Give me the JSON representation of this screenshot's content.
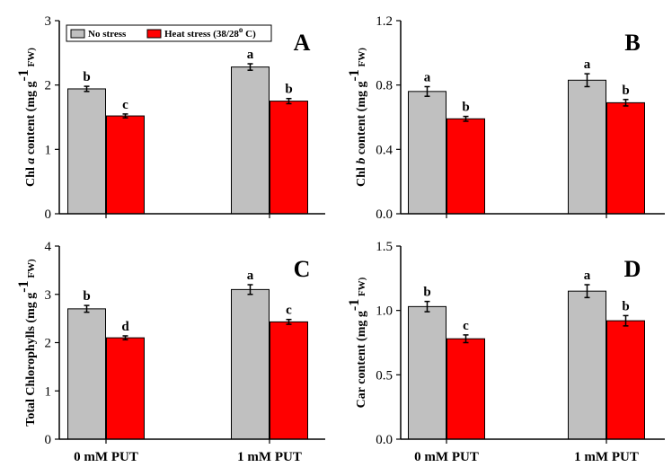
{
  "legend": {
    "no_stress": "No stress",
    "heat_stress": "Heat stress (38/28",
    "heat_stress_sup": "o",
    "heat_stress_end": " C)"
  },
  "colors": {
    "no_stress": "#c0c0c0",
    "heat_stress": "#ff0000",
    "axis": "#000000"
  },
  "chart_data": [
    {
      "type": "bar",
      "panel_label": "A",
      "categories": [
        "0  mM PUT",
        "1 mM PUT"
      ],
      "series": [
        {
          "name": "No stress",
          "values": [
            1.94,
            2.28
          ],
          "errors": [
            0.04,
            0.05
          ],
          "letters": [
            "b",
            "a"
          ]
        },
        {
          "name": "Heat stress (38/28o C)",
          "values": [
            1.52,
            1.75
          ],
          "errors": [
            0.03,
            0.04
          ],
          "letters": [
            "c",
            "b"
          ]
        }
      ],
      "ylabel": {
        "pre": "Chl ",
        "ital": "a",
        "post": " content (mg g",
        "sup": "-1",
        "end": " FW)"
      },
      "ylim": [
        0,
        3
      ],
      "yticks": [
        "0",
        "1",
        "2",
        "3"
      ]
    },
    {
      "type": "bar",
      "panel_label": "B",
      "categories": [
        "0  mM PUT",
        "1 mM PUT"
      ],
      "series": [
        {
          "name": "No stress",
          "values": [
            0.76,
            0.83
          ],
          "errors": [
            0.03,
            0.04
          ],
          "letters": [
            "a",
            "a"
          ]
        },
        {
          "name": "Heat stress (38/28o C)",
          "values": [
            0.59,
            0.69
          ],
          "errors": [
            0.015,
            0.02
          ],
          "letters": [
            "b",
            "b"
          ]
        }
      ],
      "ylabel": {
        "pre": "Chl ",
        "ital": "b",
        "post": " content (mg g",
        "sup": "-1",
        "end": " FW)"
      },
      "ylim": [
        0,
        1.2
      ],
      "yticks": [
        "0.0",
        "0.4",
        "0.8",
        "1.2"
      ]
    },
    {
      "type": "bar",
      "panel_label": "C",
      "categories": [
        "0  mM PUT",
        "1 mM PUT"
      ],
      "series": [
        {
          "name": "No stress",
          "values": [
            2.7,
            3.1
          ],
          "errors": [
            0.07,
            0.1
          ],
          "letters": [
            "b",
            "a"
          ]
        },
        {
          "name": "Heat stress (38/28o C)",
          "values": [
            2.1,
            2.43
          ],
          "errors": [
            0.04,
            0.05
          ],
          "letters": [
            "d",
            "c"
          ]
        }
      ],
      "ylabel": {
        "pre": "Total Chlorophylls  (mg g",
        "ital": "",
        "post": "",
        "sup": "-1",
        "end": " FW)"
      },
      "ylim": [
        0,
        4
      ],
      "yticks": [
        "0",
        "1",
        "2",
        "3",
        "4"
      ]
    },
    {
      "type": "bar",
      "panel_label": "D",
      "categories": [
        "0  mM PUT",
        "1 mM PUT"
      ],
      "series": [
        {
          "name": "No stress",
          "values": [
            1.03,
            1.15
          ],
          "errors": [
            0.04,
            0.05
          ],
          "letters": [
            "b",
            "a"
          ]
        },
        {
          "name": "Heat stress (38/28o C)",
          "values": [
            0.78,
            0.92
          ],
          "errors": [
            0.03,
            0.04
          ],
          "letters": [
            "c",
            "b"
          ]
        }
      ],
      "ylabel": {
        "pre": "Car content (mg g",
        "ital": "",
        "post": "",
        "sup": "-1",
        "end": " FW)"
      },
      "ylim": [
        0,
        1.5
      ],
      "yticks": [
        "0.0",
        "0.5",
        "1.0",
        "1.5"
      ]
    }
  ]
}
